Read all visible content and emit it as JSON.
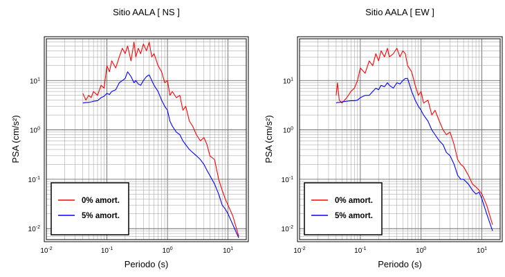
{
  "chart_data": [
    {
      "type": "line",
      "title": "Sitio AALA [ NS ]",
      "xlabel": "Periodo (s)",
      "ylabel": "PSA (cm/s²)",
      "xscale": "log",
      "yscale": "log",
      "xlim": [
        0.01,
        20
      ],
      "ylim": [
        0.006,
        70
      ],
      "grid": true,
      "legend_position": "bottom-left",
      "x_ticks": [
        {
          "value": 0.01,
          "base": "10",
          "exp": "-2"
        },
        {
          "value": 0.1,
          "base": "10",
          "exp": "-1"
        },
        {
          "value": 1,
          "base": "10",
          "exp": "0"
        },
        {
          "value": 10,
          "base": "10",
          "exp": "1"
        }
      ],
      "y_ticks": [
        {
          "value": 0.01,
          "base": "10",
          "exp": "-2"
        },
        {
          "value": 0.1,
          "base": "10",
          "exp": "-1"
        },
        {
          "value": 1,
          "base": "10",
          "exp": "0"
        },
        {
          "value": 10,
          "base": "10",
          "exp": "1"
        }
      ],
      "series": [
        {
          "name": "0% amort.",
          "color": "#ff0000",
          "x": [
            0.04,
            0.045,
            0.05,
            0.055,
            0.06,
            0.07,
            0.08,
            0.09,
            0.1,
            0.11,
            0.12,
            0.14,
            0.16,
            0.18,
            0.2,
            0.22,
            0.25,
            0.28,
            0.3,
            0.33,
            0.36,
            0.4,
            0.45,
            0.5,
            0.55,
            0.6,
            0.7,
            0.8,
            0.9,
            1.0,
            1.1,
            1.2,
            1.4,
            1.6,
            1.8,
            2.0,
            2.3,
            2.6,
            3.0,
            3.5,
            4.0,
            4.5,
            5.0,
            6.0,
            7.0,
            8.0,
            9.0,
            10.0,
            12.0,
            15.0
          ],
          "y": [
            5.5,
            4.0,
            5.0,
            4.5,
            6.0,
            5.0,
            8.0,
            7.0,
            20,
            15,
            25,
            18,
            30,
            45,
            35,
            50,
            25,
            60,
            30,
            45,
            35,
            55,
            40,
            60,
            30,
            35,
            20,
            15,
            9,
            10,
            5,
            6,
            4.5,
            5.0,
            2.5,
            3.0,
            1.5,
            1.2,
            0.8,
            0.6,
            0.7,
            0.5,
            0.3,
            0.25,
            0.1,
            0.06,
            0.04,
            0.03,
            0.018,
            0.007
          ]
        },
        {
          "name": "5% amort.",
          "color": "#0000ff",
          "x": [
            0.04,
            0.045,
            0.05,
            0.055,
            0.06,
            0.07,
            0.08,
            0.09,
            0.1,
            0.11,
            0.12,
            0.14,
            0.16,
            0.18,
            0.2,
            0.22,
            0.25,
            0.28,
            0.3,
            0.33,
            0.36,
            0.4,
            0.45,
            0.5,
            0.55,
            0.6,
            0.7,
            0.8,
            0.9,
            1.0,
            1.1,
            1.2,
            1.4,
            1.6,
            1.8,
            2.0,
            2.3,
            2.6,
            3.0,
            3.5,
            4.0,
            4.5,
            5.0,
            6.0,
            7.0,
            8.0,
            9.0,
            10.0,
            12.0,
            15.0
          ],
          "y": [
            3.5,
            3.6,
            3.6,
            3.7,
            3.8,
            3.9,
            4.5,
            4.8,
            5.5,
            5.2,
            6.0,
            6.5,
            9.0,
            10,
            11,
            15,
            12,
            9.0,
            10,
            8.5,
            8.0,
            10,
            12,
            13,
            10,
            8.0,
            6.0,
            4.0,
            3.0,
            2.5,
            1.5,
            1.2,
            0.9,
            0.8,
            0.6,
            0.5,
            0.4,
            0.35,
            0.3,
            0.25,
            0.2,
            0.15,
            0.12,
            0.08,
            0.05,
            0.03,
            0.025,
            0.02,
            0.012,
            0.0065
          ]
        }
      ]
    },
    {
      "type": "line",
      "title": "Sitio AALA [ EW ]",
      "xlabel": "Periodo (s)",
      "ylabel": "PSA (cm/s²)",
      "xscale": "log",
      "yscale": "log",
      "xlim": [
        0.01,
        20
      ],
      "ylim": [
        0.006,
        70
      ],
      "grid": true,
      "legend_position": "bottom-left",
      "x_ticks": [
        {
          "value": 0.01,
          "base": "10",
          "exp": "-2"
        },
        {
          "value": 0.1,
          "base": "10",
          "exp": "-1"
        },
        {
          "value": 1,
          "base": "10",
          "exp": "0"
        },
        {
          "value": 10,
          "base": "10",
          "exp": "1"
        }
      ],
      "y_ticks": [
        {
          "value": 0.01,
          "base": "10",
          "exp": "-2"
        },
        {
          "value": 0.1,
          "base": "10",
          "exp": "-1"
        },
        {
          "value": 1,
          "base": "10",
          "exp": "0"
        },
        {
          "value": 10,
          "base": "10",
          "exp": "1"
        }
      ],
      "series": [
        {
          "name": "0% amort.",
          "color": "#ff0000",
          "x": [
            0.04,
            0.042,
            0.045,
            0.05,
            0.06,
            0.07,
            0.08,
            0.09,
            0.1,
            0.12,
            0.14,
            0.16,
            0.18,
            0.2,
            0.22,
            0.25,
            0.28,
            0.3,
            0.35,
            0.4,
            0.45,
            0.5,
            0.55,
            0.6,
            0.7,
            0.8,
            0.9,
            1.0,
            1.1,
            1.3,
            1.5,
            1.7,
            2.0,
            2.3,
            2.6,
            3.0,
            3.5,
            4.0,
            4.5,
            5.0,
            6.0,
            7.0,
            8.0,
            9.0,
            10.0,
            12.0,
            15.0
          ],
          "y": [
            5.0,
            9.0,
            4.0,
            3.5,
            4.5,
            6.0,
            7.0,
            10,
            18,
            14,
            25,
            20,
            35,
            25,
            40,
            30,
            45,
            30,
            35,
            45,
            30,
            40,
            35,
            20,
            15,
            8.0,
            5.0,
            6.0,
            3.5,
            4.0,
            2.0,
            2.5,
            1.5,
            1.0,
            0.8,
            0.9,
            0.5,
            0.25,
            0.2,
            0.18,
            0.12,
            0.08,
            0.07,
            0.06,
            0.05,
            0.03,
            0.012
          ]
        },
        {
          "name": "5% amort.",
          "color": "#0000ff",
          "x": [
            0.04,
            0.042,
            0.045,
            0.05,
            0.06,
            0.07,
            0.08,
            0.09,
            0.1,
            0.12,
            0.14,
            0.16,
            0.18,
            0.2,
            0.22,
            0.25,
            0.28,
            0.3,
            0.35,
            0.4,
            0.45,
            0.5,
            0.55,
            0.6,
            0.7,
            0.8,
            0.9,
            1.0,
            1.1,
            1.3,
            1.5,
            1.7,
            2.0,
            2.3,
            2.6,
            3.0,
            3.5,
            4.0,
            4.5,
            5.0,
            6.0,
            7.0,
            8.0,
            9.0,
            10.0,
            12.0,
            15.0
          ],
          "y": [
            3.5,
            3.6,
            3.6,
            3.7,
            3.8,
            3.9,
            3.9,
            4.0,
            4.5,
            5.0,
            5.0,
            6.0,
            7.0,
            6.5,
            8.0,
            7.5,
            9.0,
            8.0,
            7.0,
            9.0,
            8.5,
            10,
            11,
            11,
            6.0,
            4.0,
            3.0,
            2.5,
            2.0,
            1.5,
            1.0,
            0.8,
            0.6,
            0.5,
            0.35,
            0.3,
            0.2,
            0.12,
            0.1,
            0.1,
            0.08,
            0.06,
            0.05,
            0.055,
            0.04,
            0.02,
            0.009
          ]
        }
      ]
    }
  ]
}
